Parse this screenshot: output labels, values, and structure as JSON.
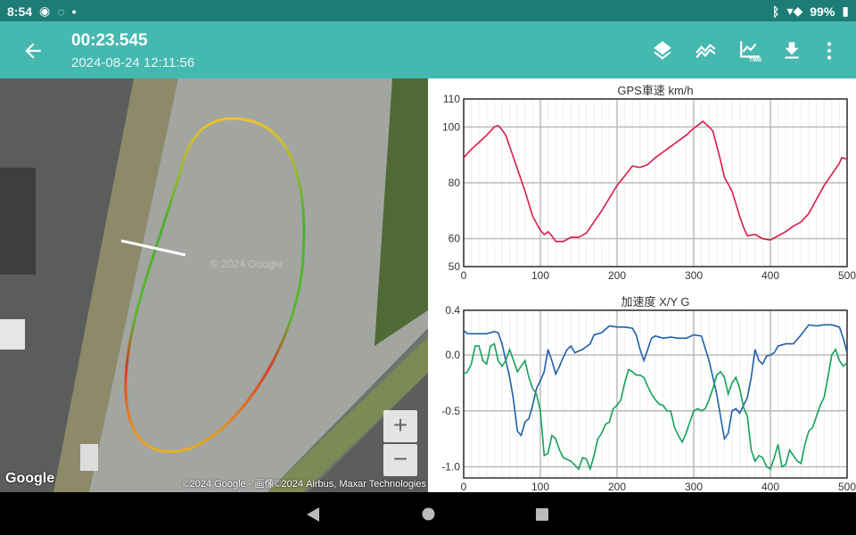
{
  "status_bar": {
    "time": "8:54",
    "battery": "99%",
    "icons": [
      "app-notification-icon",
      "chat-icon",
      "dot-icon",
      "bluetooth-icon",
      "wifi-icon",
      "battery-charging-icon"
    ]
  },
  "app_bar": {
    "title": "00:23.545",
    "subtitle": "2024-08-24 12:11:56",
    "actions": [
      "layers-icon",
      "compare-laps-icon",
      "time-chart-icon",
      "download-icon",
      "more-vert-icon"
    ]
  },
  "map": {
    "attribution": "©2024 Google - 画像©2024 Airbus, Maxar Technologies",
    "logo": "Google",
    "watermark": "© 2024 Google",
    "zoom_in": "+",
    "zoom_out": "−"
  },
  "colors": {
    "accent": "#45b8b0",
    "status": "#1d7c76",
    "speed": "#d81b4a",
    "accel_x": "#1f5fa8",
    "accel_y": "#14a05a"
  },
  "chart_data": [
    {
      "type": "line",
      "title": "GPS車速 km/h",
      "xlim": [
        0,
        500
      ],
      "ylim": [
        50,
        110
      ],
      "xticks": [
        0,
        100,
        200,
        300,
        400,
        500
      ],
      "yticks": [
        50,
        60,
        80,
        100,
        110
      ],
      "grid": true,
      "series": [
        {
          "color": "#d81b4a",
          "x": [
            0,
            10,
            20,
            30,
            40,
            45,
            50,
            55,
            60,
            70,
            80,
            90,
            100,
            105,
            110,
            115,
            120,
            130,
            140,
            150,
            160,
            170,
            180,
            190,
            200,
            210,
            220,
            230,
            240,
            250,
            260,
            270,
            280,
            290,
            300,
            305,
            312,
            320,
            325,
            335,
            340,
            350,
            360,
            365,
            370,
            380,
            390,
            400,
            410,
            420,
            430,
            440,
            450,
            460,
            470,
            480,
            490,
            493,
            500
          ],
          "y": [
            89,
            92,
            94.5,
            97,
            100,
            100.5,
            99,
            97,
            93,
            85,
            77,
            68,
            63,
            61.5,
            62.5,
            61,
            59,
            59,
            60.5,
            60.5,
            62,
            66,
            70,
            74.5,
            79,
            82.5,
            86,
            85.5,
            86.5,
            89,
            91,
            93,
            95,
            97,
            99.5,
            100.5,
            102,
            100,
            98.5,
            88,
            82,
            77,
            68,
            64,
            61,
            61.5,
            60,
            59.5,
            61,
            62.5,
            64.5,
            66,
            69,
            74,
            79,
            83,
            87,
            89,
            88.5
          ]
        }
      ]
    },
    {
      "type": "line",
      "title": "加速度 X/Y G",
      "xlim": [
        0,
        500
      ],
      "ylim": [
        -1.1,
        0.4
      ],
      "xticks": [
        0,
        100,
        200,
        300,
        400,
        500
      ],
      "yticks": [
        0.4,
        0.0,
        -0.5,
        -1.0
      ],
      "ytick_labels": [
        "0.4",
        "0.0",
        "-0.5",
        "-1.0"
      ],
      "grid": true,
      "series": [
        {
          "color": "#1f5fa8",
          "x": [
            0,
            5,
            20,
            30,
            40,
            45,
            50,
            55,
            60,
            65,
            70,
            75,
            80,
            85,
            90,
            95,
            100,
            105,
            110,
            115,
            120,
            125,
            130,
            135,
            140,
            145,
            155,
            165,
            170,
            180,
            190,
            200,
            210,
            220,
            225,
            230,
            235,
            240,
            245,
            250,
            260,
            270,
            280,
            290,
            300,
            310,
            320,
            330,
            340,
            345,
            350,
            355,
            360,
            365,
            370,
            375,
            380,
            385,
            390,
            395,
            400,
            405,
            410,
            420,
            430,
            440,
            450,
            460,
            470,
            480,
            490,
            495,
            500
          ],
          "y": [
            0.22,
            0.19,
            0.19,
            0.19,
            0.21,
            0.2,
            0.1,
            -0.05,
            -0.2,
            -0.4,
            -0.68,
            -0.72,
            -0.6,
            -0.57,
            -0.45,
            -0.3,
            -0.23,
            -0.15,
            0.05,
            -0.05,
            -0.17,
            -0.1,
            -0.02,
            0.05,
            0.08,
            0.02,
            0.05,
            0.1,
            0.18,
            0.2,
            0.26,
            0.25,
            0.25,
            0.24,
            0.18,
            0.05,
            -0.05,
            0.05,
            0.15,
            0.17,
            0.15,
            0.16,
            0.15,
            0.15,
            0.18,
            0.17,
            -0.05,
            -0.35,
            -0.75,
            -0.7,
            -0.5,
            -0.48,
            -0.52,
            -0.45,
            -0.38,
            -0.2,
            0.05,
            -0.05,
            -0.08,
            -0.01,
            0.0,
            0.02,
            0.08,
            0.1,
            0.1,
            0.18,
            0.27,
            0.26,
            0.27,
            0.27,
            0.25,
            0.15,
            0.02
          ]
        },
        {
          "color": "#14a05a",
          "x": [
            0,
            5,
            10,
            15,
            20,
            25,
            30,
            35,
            40,
            45,
            50,
            55,
            60,
            65,
            70,
            75,
            80,
            85,
            90,
            95,
            100,
            105,
            110,
            115,
            120,
            125,
            130,
            140,
            150,
            155,
            160,
            165,
            170,
            175,
            180,
            185,
            190,
            195,
            200,
            205,
            210,
            215,
            220,
            225,
            230,
            235,
            240,
            245,
            250,
            255,
            260,
            265,
            270,
            275,
            280,
            285,
            290,
            295,
            300,
            305,
            310,
            315,
            320,
            325,
            330,
            335,
            340,
            345,
            350,
            355,
            360,
            365,
            370,
            375,
            380,
            385,
            390,
            395,
            400,
            405,
            410,
            415,
            420,
            425,
            430,
            435,
            440,
            445,
            450,
            455,
            460,
            465,
            470,
            475,
            480,
            485,
            490,
            495,
            500
          ],
          "y": [
            -0.17,
            -0.15,
            -0.08,
            0.08,
            0.08,
            -0.05,
            -0.08,
            0.08,
            0.1,
            -0.05,
            -0.1,
            -0.05,
            0.05,
            -0.05,
            -0.15,
            -0.1,
            -0.05,
            -0.2,
            -0.3,
            -0.35,
            -0.5,
            -0.9,
            -0.88,
            -0.72,
            -0.75,
            -0.85,
            -0.92,
            -0.95,
            -1.02,
            -0.92,
            -0.93,
            -1.02,
            -0.9,
            -0.75,
            -0.7,
            -0.62,
            -0.6,
            -0.48,
            -0.45,
            -0.4,
            -0.25,
            -0.13,
            -0.15,
            -0.18,
            -0.18,
            -0.2,
            -0.28,
            -0.35,
            -0.4,
            -0.44,
            -0.45,
            -0.5,
            -0.5,
            -0.65,
            -0.72,
            -0.78,
            -0.7,
            -0.6,
            -0.5,
            -0.48,
            -0.5,
            -0.48,
            -0.4,
            -0.3,
            -0.18,
            -0.15,
            -0.2,
            -0.35,
            -0.25,
            -0.2,
            -0.3,
            -0.47,
            -0.55,
            -0.85,
            -0.95,
            -0.9,
            -0.92,
            -1.0,
            -1.02,
            -0.92,
            -0.8,
            -1.0,
            -0.98,
            -0.85,
            -0.9,
            -0.95,
            -0.97,
            -0.8,
            -0.68,
            -0.65,
            -0.55,
            -0.45,
            -0.38,
            -0.2,
            0.0,
            0.05,
            -0.05,
            -0.1,
            -0.07
          ]
        }
      ]
    }
  ]
}
